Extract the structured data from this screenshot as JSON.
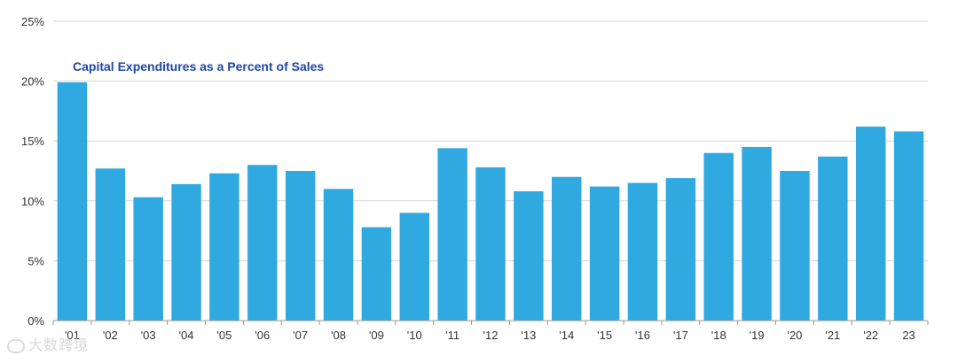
{
  "chart_data": {
    "type": "bar",
    "title": "Capital Expenditures as a Percent of Sales",
    "xlabel": "",
    "ylabel": "",
    "categories": [
      "'01",
      "'02",
      "'03",
      "'04",
      "'05",
      "'06",
      "'07",
      "'08",
      "'09",
      "'10",
      "'11",
      "'12",
      "'13",
      "'14",
      "'15",
      "'16",
      "'17",
      "'18",
      "'19",
      "'20",
      "'21",
      "'22",
      "23"
    ],
    "values": [
      19.9,
      12.7,
      10.3,
      11.4,
      12.3,
      13.0,
      12.5,
      11.0,
      7.8,
      9.0,
      14.4,
      12.8,
      10.8,
      12.0,
      11.2,
      11.5,
      11.9,
      14.0,
      14.5,
      12.5,
      13.7,
      16.2,
      15.8
    ],
    "ylim": [
      0,
      25
    ],
    "yticks": [
      0,
      5,
      10,
      15,
      20,
      25
    ],
    "ytick_labels": [
      "0%",
      "5%",
      "10%",
      "15%",
      "20%",
      "25%"
    ],
    "grid": true,
    "bar_color": "#2fa9e0",
    "title_color": "#2045a8"
  },
  "watermark": {
    "text": "大数跨境"
  }
}
